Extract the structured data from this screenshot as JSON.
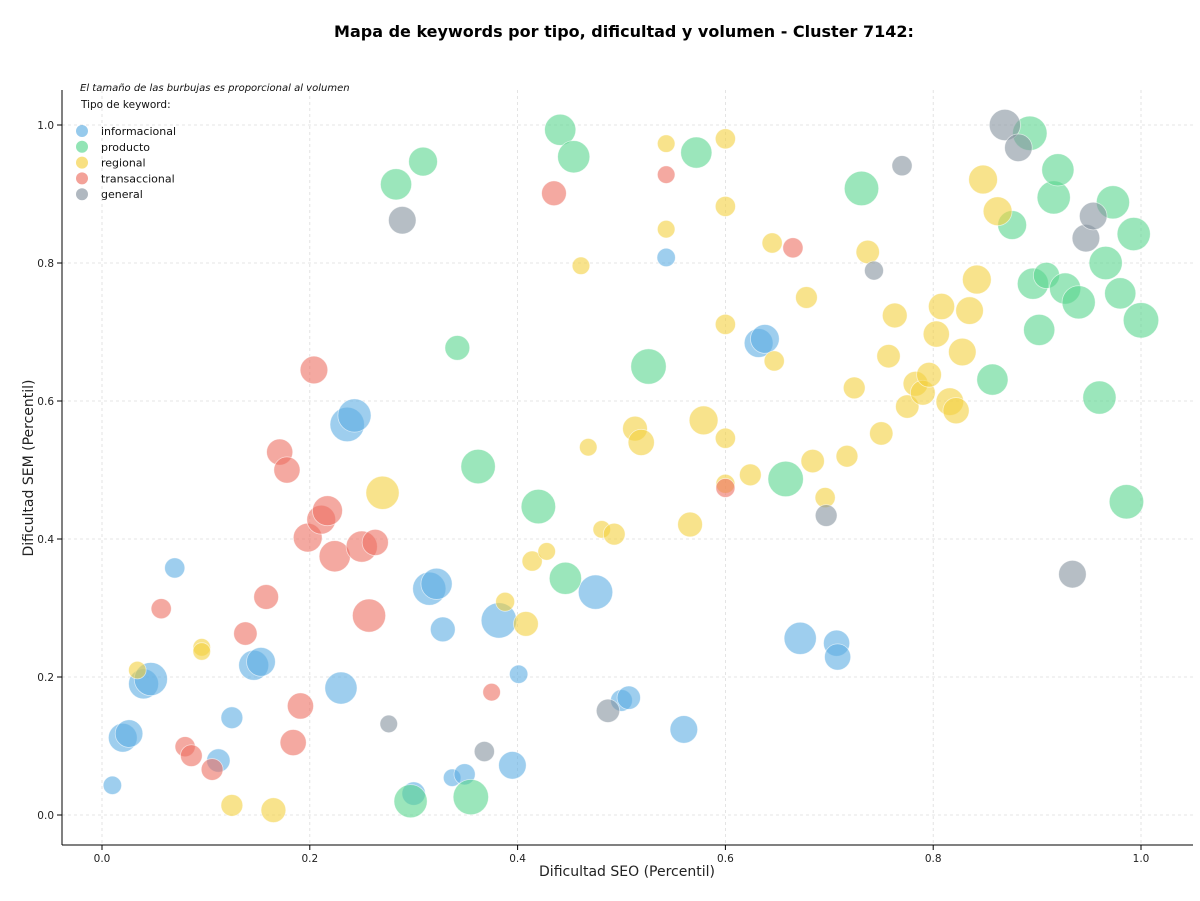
{
  "chart_data": {
    "type": "scatter",
    "title": "Mapa de keywords por tipo, dificultad y volumen - Cluster 7142:",
    "xlabel": "Dificultad SEO (Percentil)",
    "ylabel": "Dificultad SEM (Percentil)",
    "xlim": [
      -0.04,
      1.05
    ],
    "ylim": [
      -0.045,
      1.05
    ],
    "xticks": [
      "0.0",
      "0.2",
      "0.4",
      "0.6",
      "0.8",
      "1.0"
    ],
    "yticks": [
      "0.0",
      "0.2",
      "0.4",
      "0.6",
      "0.8",
      "1.0"
    ],
    "grid": true,
    "legend_position": "top-left",
    "note": "El tamaño de las burbujas es proporcional al volumen",
    "legend_title": "Tipo de keyword:",
    "series": [
      {
        "name": "informacional",
        "color": "#5DADE2",
        "points": [
          {
            "x": 0.01,
            "y": 0.043,
            "v": 0.1
          },
          {
            "x": 0.02,
            "y": 0.112,
            "v": 0.45
          },
          {
            "x": 0.026,
            "y": 0.118,
            "v": 0.4
          },
          {
            "x": 0.04,
            "y": 0.19,
            "v": 0.5
          },
          {
            "x": 0.047,
            "y": 0.197,
            "v": 0.65
          },
          {
            "x": 0.07,
            "y": 0.358,
            "v": 0.15
          },
          {
            "x": 0.112,
            "y": 0.079,
            "v": 0.25
          },
          {
            "x": 0.125,
            "y": 0.141,
            "v": 0.2
          },
          {
            "x": 0.146,
            "y": 0.217,
            "v": 0.5
          },
          {
            "x": 0.153,
            "y": 0.222,
            "v": 0.45
          },
          {
            "x": 0.23,
            "y": 0.184,
            "v": 0.6
          },
          {
            "x": 0.236,
            "y": 0.566,
            "v": 0.7
          },
          {
            "x": 0.243,
            "y": 0.579,
            "v": 0.65
          },
          {
            "x": 0.3,
            "y": 0.031,
            "v": 0.25
          },
          {
            "x": 0.315,
            "y": 0.328,
            "v": 0.65
          },
          {
            "x": 0.322,
            "y": 0.335,
            "v": 0.55
          },
          {
            "x": 0.328,
            "y": 0.269,
            "v": 0.3
          },
          {
            "x": 0.337,
            "y": 0.054,
            "v": 0.08
          },
          {
            "x": 0.349,
            "y": 0.059,
            "v": 0.18
          },
          {
            "x": 0.382,
            "y": 0.282,
            "v": 0.75
          },
          {
            "x": 0.395,
            "y": 0.072,
            "v": 0.4
          },
          {
            "x": 0.401,
            "y": 0.204,
            "v": 0.1
          },
          {
            "x": 0.475,
            "y": 0.323,
            "v": 0.7
          },
          {
            "x": 0.5,
            "y": 0.166,
            "v": 0.2
          },
          {
            "x": 0.507,
            "y": 0.17,
            "v": 0.25
          },
          {
            "x": 0.543,
            "y": 0.808,
            "v": 0.1
          },
          {
            "x": 0.56,
            "y": 0.124,
            "v": 0.4
          },
          {
            "x": 0.632,
            "y": 0.684,
            "v": 0.45
          },
          {
            "x": 0.638,
            "y": 0.69,
            "v": 0.45
          },
          {
            "x": 0.672,
            "y": 0.256,
            "v": 0.6
          },
          {
            "x": 0.707,
            "y": 0.249,
            "v": 0.35
          },
          {
            "x": 0.708,
            "y": 0.229,
            "v": 0.35
          }
        ]
      },
      {
        "name": "producto",
        "color": "#58D68D",
        "points": [
          {
            "x": 0.283,
            "y": 0.914,
            "v": 0.55
          },
          {
            "x": 0.309,
            "y": 0.947,
            "v": 0.45
          },
          {
            "x": 0.297,
            "y": 0.02,
            "v": 0.65
          },
          {
            "x": 0.342,
            "y": 0.677,
            "v": 0.3
          },
          {
            "x": 0.355,
            "y": 0.026,
            "v": 0.75
          },
          {
            "x": 0.362,
            "y": 0.505,
            "v": 0.7
          },
          {
            "x": 0.42,
            "y": 0.447,
            "v": 0.7
          },
          {
            "x": 0.441,
            "y": 0.993,
            "v": 0.55
          },
          {
            "x": 0.446,
            "y": 0.343,
            "v": 0.6
          },
          {
            "x": 0.454,
            "y": 0.954,
            "v": 0.6
          },
          {
            "x": 0.526,
            "y": 0.65,
            "v": 0.75
          },
          {
            "x": 0.572,
            "y": 0.96,
            "v": 0.55
          },
          {
            "x": 0.658,
            "y": 0.487,
            "v": 0.75
          },
          {
            "x": 0.731,
            "y": 0.908,
            "v": 0.7
          },
          {
            "x": 0.857,
            "y": 0.631,
            "v": 0.55
          },
          {
            "x": 0.876,
            "y": 0.855,
            "v": 0.45
          },
          {
            "x": 0.893,
            "y": 0.988,
            "v": 0.7
          },
          {
            "x": 0.896,
            "y": 0.77,
            "v": 0.55
          },
          {
            "x": 0.902,
            "y": 0.703,
            "v": 0.55
          },
          {
            "x": 0.909,
            "y": 0.782,
            "v": 0.35
          },
          {
            "x": 0.916,
            "y": 0.895,
            "v": 0.65
          },
          {
            "x": 0.92,
            "y": 0.935,
            "v": 0.6
          },
          {
            "x": 0.927,
            "y": 0.763,
            "v": 0.55
          },
          {
            "x": 0.94,
            "y": 0.743,
            "v": 0.65
          },
          {
            "x": 0.96,
            "y": 0.605,
            "v": 0.65
          },
          {
            "x": 0.966,
            "y": 0.8,
            "v": 0.65
          },
          {
            "x": 0.973,
            "y": 0.888,
            "v": 0.65
          },
          {
            "x": 0.98,
            "y": 0.756,
            "v": 0.55
          },
          {
            "x": 0.986,
            "y": 0.454,
            "v": 0.7
          },
          {
            "x": 0.993,
            "y": 0.842,
            "v": 0.65
          },
          {
            "x": 1.0,
            "y": 0.717,
            "v": 0.75
          }
        ]
      },
      {
        "name": "regional",
        "color": "#F4D03F",
        "points": [
          {
            "x": 0.034,
            "y": 0.21,
            "v": 0.08
          },
          {
            "x": 0.096,
            "y": 0.243,
            "v": 0.08
          },
          {
            "x": 0.096,
            "y": 0.237,
            "v": 0.08
          },
          {
            "x": 0.125,
            "y": 0.014,
            "v": 0.2
          },
          {
            "x": 0.165,
            "y": 0.007,
            "v": 0.3
          },
          {
            "x": 0.27,
            "y": 0.467,
            "v": 0.65
          },
          {
            "x": 0.388,
            "y": 0.309,
            "v": 0.12
          },
          {
            "x": 0.408,
            "y": 0.277,
            "v": 0.3
          },
          {
            "x": 0.414,
            "y": 0.368,
            "v": 0.15
          },
          {
            "x": 0.428,
            "y": 0.382,
            "v": 0.08
          },
          {
            "x": 0.461,
            "y": 0.796,
            "v": 0.08
          },
          {
            "x": 0.468,
            "y": 0.533,
            "v": 0.08
          },
          {
            "x": 0.481,
            "y": 0.414,
            "v": 0.08
          },
          {
            "x": 0.493,
            "y": 0.407,
            "v": 0.2
          },
          {
            "x": 0.513,
            "y": 0.56,
            "v": 0.3
          },
          {
            "x": 0.519,
            "y": 0.54,
            "v": 0.35
          },
          {
            "x": 0.543,
            "y": 0.973,
            "v": 0.08
          },
          {
            "x": 0.543,
            "y": 0.849,
            "v": 0.08
          },
          {
            "x": 0.566,
            "y": 0.421,
            "v": 0.3
          },
          {
            "x": 0.579,
            "y": 0.572,
            "v": 0.45
          },
          {
            "x": 0.6,
            "y": 0.98,
            "v": 0.15
          },
          {
            "x": 0.6,
            "y": 0.882,
            "v": 0.15
          },
          {
            "x": 0.6,
            "y": 0.711,
            "v": 0.15
          },
          {
            "x": 0.6,
            "y": 0.546,
            "v": 0.15
          },
          {
            "x": 0.6,
            "y": 0.48,
            "v": 0.12
          },
          {
            "x": 0.624,
            "y": 0.493,
            "v": 0.2
          },
          {
            "x": 0.645,
            "y": 0.829,
            "v": 0.15
          },
          {
            "x": 0.647,
            "y": 0.658,
            "v": 0.15
          },
          {
            "x": 0.678,
            "y": 0.75,
            "v": 0.2
          },
          {
            "x": 0.684,
            "y": 0.513,
            "v": 0.25
          },
          {
            "x": 0.696,
            "y": 0.46,
            "v": 0.15
          },
          {
            "x": 0.717,
            "y": 0.52,
            "v": 0.2
          },
          {
            "x": 0.724,
            "y": 0.619,
            "v": 0.2
          },
          {
            "x": 0.737,
            "y": 0.816,
            "v": 0.25
          },
          {
            "x": 0.75,
            "y": 0.553,
            "v": 0.25
          },
          {
            "x": 0.757,
            "y": 0.665,
            "v": 0.25
          },
          {
            "x": 0.763,
            "y": 0.724,
            "v": 0.3
          },
          {
            "x": 0.775,
            "y": 0.592,
            "v": 0.25
          },
          {
            "x": 0.783,
            "y": 0.625,
            "v": 0.3
          },
          {
            "x": 0.79,
            "y": 0.612,
            "v": 0.3
          },
          {
            "x": 0.796,
            "y": 0.638,
            "v": 0.3
          },
          {
            "x": 0.803,
            "y": 0.697,
            "v": 0.35
          },
          {
            "x": 0.808,
            "y": 0.737,
            "v": 0.35
          },
          {
            "x": 0.816,
            "y": 0.599,
            "v": 0.4
          },
          {
            "x": 0.822,
            "y": 0.586,
            "v": 0.35
          },
          {
            "x": 0.828,
            "y": 0.671,
            "v": 0.4
          },
          {
            "x": 0.835,
            "y": 0.731,
            "v": 0.4
          },
          {
            "x": 0.842,
            "y": 0.776,
            "v": 0.45
          },
          {
            "x": 0.848,
            "y": 0.921,
            "v": 0.45
          },
          {
            "x": 0.862,
            "y": 0.875,
            "v": 0.45
          }
        ]
      },
      {
        "name": "transaccional",
        "color": "#EC7063",
        "points": [
          {
            "x": 0.057,
            "y": 0.299,
            "v": 0.15
          },
          {
            "x": 0.08,
            "y": 0.099,
            "v": 0.15
          },
          {
            "x": 0.086,
            "y": 0.086,
            "v": 0.2
          },
          {
            "x": 0.106,
            "y": 0.066,
            "v": 0.2
          },
          {
            "x": 0.138,
            "y": 0.263,
            "v": 0.25
          },
          {
            "x": 0.158,
            "y": 0.316,
            "v": 0.3
          },
          {
            "x": 0.171,
            "y": 0.526,
            "v": 0.35
          },
          {
            "x": 0.178,
            "y": 0.5,
            "v": 0.35
          },
          {
            "x": 0.184,
            "y": 0.105,
            "v": 0.35
          },
          {
            "x": 0.191,
            "y": 0.158,
            "v": 0.35
          },
          {
            "x": 0.198,
            "y": 0.402,
            "v": 0.45
          },
          {
            "x": 0.204,
            "y": 0.645,
            "v": 0.4
          },
          {
            "x": 0.211,
            "y": 0.428,
            "v": 0.45
          },
          {
            "x": 0.217,
            "y": 0.441,
            "v": 0.5
          },
          {
            "x": 0.224,
            "y": 0.375,
            "v": 0.55
          },
          {
            "x": 0.25,
            "y": 0.389,
            "v": 0.55
          },
          {
            "x": 0.257,
            "y": 0.289,
            "v": 0.65
          },
          {
            "x": 0.263,
            "y": 0.395,
            "v": 0.35
          },
          {
            "x": 0.375,
            "y": 0.178,
            "v": 0.08
          },
          {
            "x": 0.435,
            "y": 0.901,
            "v": 0.3
          },
          {
            "x": 0.543,
            "y": 0.928,
            "v": 0.08
          },
          {
            "x": 0.6,
            "y": 0.474,
            "v": 0.12
          },
          {
            "x": 0.665,
            "y": 0.822,
            "v": 0.15
          }
        ]
      },
      {
        "name": "general",
        "color": "#85929E",
        "points": [
          {
            "x": 0.276,
            "y": 0.132,
            "v": 0.08
          },
          {
            "x": 0.289,
            "y": 0.862,
            "v": 0.4
          },
          {
            "x": 0.368,
            "y": 0.092,
            "v": 0.15
          },
          {
            "x": 0.487,
            "y": 0.151,
            "v": 0.25
          },
          {
            "x": 0.697,
            "y": 0.434,
            "v": 0.2
          },
          {
            "x": 0.743,
            "y": 0.789,
            "v": 0.12
          },
          {
            "x": 0.77,
            "y": 0.941,
            "v": 0.15
          },
          {
            "x": 0.869,
            "y": 1.0,
            "v": 0.55
          },
          {
            "x": 0.882,
            "y": 0.967,
            "v": 0.4
          },
          {
            "x": 0.934,
            "y": 0.349,
            "v": 0.4
          },
          {
            "x": 0.947,
            "y": 0.836,
            "v": 0.4
          },
          {
            "x": 0.954,
            "y": 0.868,
            "v": 0.4
          }
        ]
      }
    ]
  }
}
